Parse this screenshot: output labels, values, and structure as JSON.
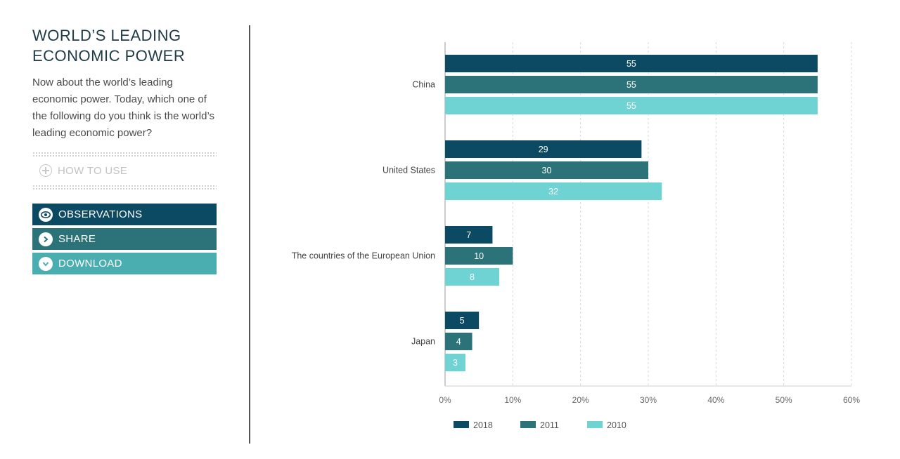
{
  "panel": {
    "title_line1": "WORLD’S LEADING",
    "title_line2": "ECONOMIC POWER",
    "description": "Now about the world’s leading economic power. Today, which one of the following do you think is the world’s leading economic power?",
    "how_to_use": "HOW TO USE",
    "buttons": {
      "observations": "OBSERVATIONS",
      "share": "SHARE",
      "download": "DOWNLOAD"
    }
  },
  "colors": {
    "s2018": "#0c4a63",
    "s2011": "#2b7378",
    "s2010": "#70d3d3",
    "grid": "#d8d8d8",
    "axis": "#9a9a9a"
  },
  "chart_data": {
    "type": "bar",
    "orientation": "horizontal",
    "categories": [
      "China",
      "United States",
      "The countries of the European Union",
      "Japan"
    ],
    "series": [
      {
        "name": "2018",
        "values": [
          55,
          29,
          7,
          5
        ]
      },
      {
        "name": "2011",
        "values": [
          55,
          30,
          10,
          4
        ]
      },
      {
        "name": "2010",
        "values": [
          55,
          32,
          8,
          3
        ]
      }
    ],
    "xlim": [
      0,
      60
    ],
    "xticks": [
      0,
      10,
      20,
      30,
      40,
      50,
      60
    ],
    "xtick_labels": [
      "0%",
      "10%",
      "20%",
      "30%",
      "40%",
      "50%",
      "60%"
    ],
    "grid": true,
    "legend": "bottom"
  }
}
